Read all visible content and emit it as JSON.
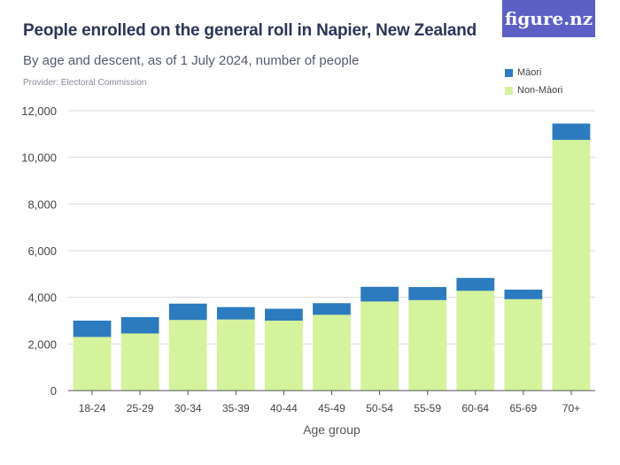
{
  "header": {
    "title": "People enrolled on the general roll in Napier, New Zealand",
    "subtitle": "By age and descent, as of 1 July 2024, number of people",
    "provider": "Provider: Electoral Commission",
    "logo": "figure.nz"
  },
  "colors": {
    "maori": "#2c7bbf",
    "non_maori": "#d5f29c",
    "grid": "#d9d9d9",
    "axis": "#555555"
  },
  "chart_data": {
    "type": "bar",
    "stacked": true,
    "categories": [
      "18-24",
      "25-29",
      "30-34",
      "35-39",
      "40-44",
      "45-49",
      "50-54",
      "55-59",
      "60-64",
      "65-69",
      "70+"
    ],
    "series": [
      {
        "name": "Non-Māori",
        "values": [
          2300,
          2450,
          3030,
          3050,
          3000,
          3250,
          3820,
          3880,
          4280,
          3920,
          10750
        ]
      },
      {
        "name": "Māori",
        "values": [
          700,
          700,
          700,
          530,
          510,
          500,
          630,
          560,
          550,
          410,
          700
        ]
      }
    ],
    "legend": [
      "Māori",
      "Non-Māori"
    ],
    "legend_position": "top-right",
    "xlabel": "Age group",
    "ylabel": "",
    "ylim": [
      0,
      12000
    ],
    "yticks": [
      0,
      2000,
      4000,
      6000,
      8000,
      10000,
      12000
    ],
    "ytick_labels": [
      "0",
      "2,000",
      "4,000",
      "6,000",
      "8,000",
      "10,000",
      "12,000"
    ],
    "grid": true
  }
}
